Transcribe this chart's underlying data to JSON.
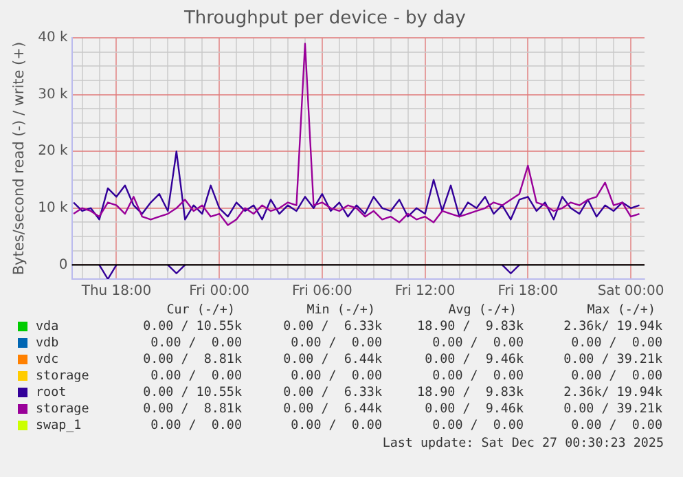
{
  "chart_data": {
    "type": "line",
    "title": "Throughput per device - by day",
    "ylabel": "Bytes/second read (-) / write (+)",
    "x": [
      "2025-12-25T15:30",
      "2025-12-25T16:00",
      "2025-12-25T16:30",
      "2025-12-25T17:00",
      "2025-12-25T17:30",
      "2025-12-25T18:00",
      "2025-12-25T18:30",
      "2025-12-25T19:00",
      "2025-12-25T19:30",
      "2025-12-25T20:00",
      "2025-12-25T20:30",
      "2025-12-25T21:00",
      "2025-12-25T21:30",
      "2025-12-25T22:00",
      "2025-12-25T22:30",
      "2025-12-25T23:00",
      "2025-12-25T23:30",
      "2025-12-26T00:00",
      "2025-12-26T00:30",
      "2025-12-26T01:00",
      "2025-12-26T01:30",
      "2025-12-26T02:00",
      "2025-12-26T02:30",
      "2025-12-26T03:00",
      "2025-12-26T03:30",
      "2025-12-26T04:00",
      "2025-12-26T04:30",
      "2025-12-26T05:00",
      "2025-12-26T05:30",
      "2025-12-26T06:00",
      "2025-12-26T06:30",
      "2025-12-26T07:00",
      "2025-12-26T07:30",
      "2025-12-26T08:00",
      "2025-12-26T08:30",
      "2025-12-26T09:00",
      "2025-12-26T09:30",
      "2025-12-26T10:00",
      "2025-12-26T10:30",
      "2025-12-26T11:00",
      "2025-12-26T11:30",
      "2025-12-26T12:00",
      "2025-12-26T12:30",
      "2025-12-26T13:00",
      "2025-12-26T13:30",
      "2025-12-26T14:00",
      "2025-12-26T14:30",
      "2025-12-26T15:00",
      "2025-12-26T15:30",
      "2025-12-26T16:00",
      "2025-12-26T16:30",
      "2025-12-26T17:00",
      "2025-12-26T17:30",
      "2025-12-26T18:00",
      "2025-12-26T18:30",
      "2025-12-26T19:00",
      "2025-12-26T19:30",
      "2025-12-26T20:00",
      "2025-12-26T20:30",
      "2025-12-26T21:00",
      "2025-12-26T21:30",
      "2025-12-26T22:00",
      "2025-12-26T22:30",
      "2025-12-26T23:00",
      "2025-12-26T23:30",
      "2025-12-27T00:00",
      "2025-12-27T00:30"
    ],
    "xlim": [
      "2025-12-25T15:24",
      "2025-12-27T00:48"
    ],
    "xticks": [
      {
        "value": "2025-12-25T16:00",
        "label": null
      },
      {
        "value": "2025-12-25T17:00",
        "label": null
      },
      {
        "value": "2025-12-25T18:00",
        "label": "Thu 18:00"
      },
      {
        "value": "2025-12-25T19:00",
        "label": null
      },
      {
        "value": "2025-12-25T20:00",
        "label": null
      },
      {
        "value": "2025-12-25T21:00",
        "label": null
      },
      {
        "value": "2025-12-25T22:00",
        "label": null
      },
      {
        "value": "2025-12-25T23:00",
        "label": null
      },
      {
        "value": "2025-12-26T00:00",
        "label": "Fri 00:00"
      },
      {
        "value": "2025-12-26T01:00",
        "label": null
      },
      {
        "value": "2025-12-26T02:00",
        "label": null
      },
      {
        "value": "2025-12-26T03:00",
        "label": null
      },
      {
        "value": "2025-12-26T04:00",
        "label": null
      },
      {
        "value": "2025-12-26T05:00",
        "label": null
      },
      {
        "value": "2025-12-26T06:00",
        "label": "Fri 06:00"
      },
      {
        "value": "2025-12-26T07:00",
        "label": null
      },
      {
        "value": "2025-12-26T08:00",
        "label": null
      },
      {
        "value": "2025-12-26T09:00",
        "label": null
      },
      {
        "value": "2025-12-26T10:00",
        "label": null
      },
      {
        "value": "2025-12-26T11:00",
        "label": null
      },
      {
        "value": "2025-12-26T12:00",
        "label": "Fri 12:00"
      },
      {
        "value": "2025-12-26T13:00",
        "label": null
      },
      {
        "value": "2025-12-26T14:00",
        "label": null
      },
      {
        "value": "2025-12-26T15:00",
        "label": null
      },
      {
        "value": "2025-12-26T16:00",
        "label": null
      },
      {
        "value": "2025-12-26T17:00",
        "label": null
      },
      {
        "value": "2025-12-26T18:00",
        "label": "Fri 18:00"
      },
      {
        "value": "2025-12-26T19:00",
        "label": null
      },
      {
        "value": "2025-12-26T20:00",
        "label": null
      },
      {
        "value": "2025-12-26T21:00",
        "label": null
      },
      {
        "value": "2025-12-26T22:00",
        "label": null
      },
      {
        "value": "2025-12-26T23:00",
        "label": null
      },
      {
        "value": "2025-12-27T00:00",
        "label": "Sat 00:00"
      }
    ],
    "ylim": [
      -2500,
      40000
    ],
    "yticks": [
      {
        "value": -2500,
        "label": null
      },
      {
        "value": 0,
        "label": "0"
      },
      {
        "value": 2500,
        "label": null
      },
      {
        "value": 5000,
        "label": null
      },
      {
        "value": 7500,
        "label": null
      },
      {
        "value": 10000,
        "label": "10 k"
      },
      {
        "value": 12500,
        "label": null
      },
      {
        "value": 15000,
        "label": null
      },
      {
        "value": 17500,
        "label": null
      },
      {
        "value": 20000,
        "label": "20 k"
      },
      {
        "value": 22500,
        "label": null
      },
      {
        "value": 25000,
        "label": null
      },
      {
        "value": 27500,
        "label": null
      },
      {
        "value": 30000,
        "label": "30 k"
      },
      {
        "value": 32500,
        "label": null
      },
      {
        "value": 35000,
        "label": null
      },
      {
        "value": 37500,
        "label": null
      },
      {
        "value": 40000,
        "label": "40 k"
      }
    ],
    "grid": true,
    "legend": "bottom",
    "marker": "none",
    "line_style": "solid",
    "ref_lines": [
      {
        "axis": "y",
        "value": 0,
        "label": null,
        "color": "#000000"
      }
    ],
    "series": [
      {
        "name": "vda",
        "color": "#00cc00",
        "values": [
          null,
          null,
          null,
          null,
          null,
          null,
          null,
          null,
          null,
          null,
          null,
          null,
          null,
          null,
          null,
          null,
          null,
          null,
          null,
          null,
          null,
          null,
          null,
          null,
          null,
          null,
          null,
          null,
          null,
          null,
          null,
          null,
          null,
          null,
          null,
          null,
          null,
          null,
          null,
          null,
          null,
          null,
          null,
          null,
          null,
          null,
          null,
          null,
          null,
          null,
          null,
          null,
          null,
          null,
          null,
          null,
          null,
          null,
          null,
          null,
          null,
          null,
          null,
          null,
          null,
          null,
          null
        ]
      },
      {
        "name": "vdb",
        "color": "#0066b3",
        "values": [
          null,
          null,
          null,
          null,
          null,
          null,
          null,
          null,
          null,
          null,
          null,
          null,
          null,
          null,
          null,
          null,
          null,
          null,
          null,
          null,
          null,
          null,
          null,
          null,
          null,
          null,
          null,
          null,
          null,
          null,
          null,
          null,
          null,
          null,
          null,
          null,
          null,
          null,
          null,
          null,
          null,
          null,
          null,
          null,
          null,
          null,
          null,
          null,
          null,
          null,
          null,
          null,
          null,
          null,
          null,
          null,
          null,
          null,
          null,
          null,
          null,
          null,
          null,
          null,
          null,
          null,
          null
        ]
      },
      {
        "name": "vdc",
        "color": "#ff8000",
        "values": [
          null,
          null,
          null,
          null,
          null,
          null,
          null,
          null,
          null,
          null,
          null,
          null,
          null,
          null,
          null,
          null,
          null,
          null,
          null,
          null,
          null,
          null,
          null,
          null,
          null,
          null,
          null,
          null,
          null,
          null,
          null,
          null,
          null,
          null,
          null,
          null,
          null,
          null,
          null,
          null,
          null,
          null,
          null,
          null,
          null,
          null,
          null,
          null,
          null,
          null,
          null,
          null,
          null,
          null,
          null,
          null,
          null,
          null,
          null,
          null,
          null,
          null,
          null,
          null,
          null,
          null,
          null
        ]
      },
      {
        "name": "storage",
        "color": "#ffcc00",
        "values": [
          null,
          null,
          null,
          null,
          null,
          null,
          null,
          null,
          null,
          null,
          null,
          null,
          null,
          null,
          null,
          null,
          null,
          null,
          null,
          null,
          null,
          null,
          null,
          null,
          null,
          null,
          null,
          null,
          null,
          null,
          null,
          null,
          null,
          null,
          null,
          null,
          null,
          null,
          null,
          null,
          null,
          null,
          null,
          null,
          null,
          null,
          null,
          null,
          null,
          null,
          null,
          null,
          null,
          null,
          null,
          null,
          null,
          null,
          null,
          null,
          null,
          null,
          null,
          null,
          null,
          null,
          null
        ]
      },
      {
        "name": "root",
        "color": "#330099",
        "values": [
          11000,
          9500,
          10000,
          8000,
          13500,
          12000,
          14000,
          10500,
          9000,
          11000,
          12500,
          9500,
          20000,
          8000,
          10500,
          9000,
          14000,
          10000,
          8500,
          11000,
          9500,
          10500,
          8000,
          11500,
          9000,
          10500,
          9500,
          12000,
          10000,
          12500,
          9500,
          11000,
          8500,
          10500,
          9000,
          12000,
          10000,
          9500,
          11500,
          8500,
          10000,
          9000,
          15000,
          9500,
          14000,
          8500,
          11000,
          10000,
          12000,
          9000,
          10500,
          8000,
          11500,
          12000,
          9500,
          11000,
          8000,
          12000,
          10000,
          9000,
          11500,
          8500,
          10500,
          9500,
          11000,
          10000,
          10500
        ]
      },
      {
        "name": "storage",
        "color": "#990099",
        "values": [
          9000,
          10000,
          9500,
          8500,
          11000,
          10500,
          9000,
          12000,
          8500,
          8000,
          8500,
          9000,
          10000,
          11500,
          9500,
          10500,
          8500,
          9000,
          7000,
          8000,
          10000,
          9000,
          10500,
          9500,
          10000,
          11000,
          10500,
          39000,
          10500,
          11000,
          10000,
          9500,
          10500,
          10000,
          8500,
          9500,
          8000,
          8500,
          7500,
          9000,
          8000,
          8500,
          7500,
          9500,
          9000,
          8500,
          9000,
          9500,
          10000,
          11000,
          10500,
          11500,
          12500,
          17500,
          11000,
          10500,
          9500,
          10000,
          11000,
          10500,
          11500,
          12000,
          14500,
          10500,
          11000,
          8500,
          9000
        ]
      },
      {
        "name": "swap_1",
        "color": "#ccff00",
        "values": [
          null,
          null,
          null,
          null,
          null,
          null,
          null,
          null,
          null,
          null,
          null,
          null,
          null,
          null,
          null,
          null,
          null,
          null,
          null,
          null,
          null,
          null,
          null,
          null,
          null,
          null,
          null,
          null,
          null,
          null,
          null,
          null,
          null,
          null,
          null,
          null,
          null,
          null,
          null,
          null,
          null,
          null,
          null,
          null,
          null,
          null,
          null,
          null,
          null,
          null,
          null,
          null,
          null,
          null,
          null,
          null,
          null,
          null,
          null,
          null,
          null,
          null,
          null,
          null,
          null,
          null,
          null
        ]
      },
      {
        "color": "#330099",
        "values": [
          null,
          null,
          null,
          0,
          -2500,
          0,
          null,
          null,
          null,
          null,
          null,
          0,
          -1500,
          0,
          null,
          null,
          null,
          null,
          null,
          null,
          null,
          null,
          null,
          null,
          null,
          null,
          null,
          null,
          null,
          null,
          null,
          null,
          null,
          null,
          null,
          null,
          null,
          null,
          null,
          null,
          null,
          null,
          null,
          null,
          null,
          null,
          null,
          null,
          null,
          null,
          0,
          -1500,
          0,
          null,
          null,
          null,
          null,
          null,
          null,
          null,
          null,
          null,
          null,
          null,
          null,
          null,
          null
        ]
      }
    ],
    "annotations": [
      "Cur (-/+)",
      "Min (-/+)",
      "Avg (-/+)",
      "Max (-/+)",
      "0.00 / 10.55k",
      "0.00 /  6.33k",
      "18.90 /  9.83k",
      "2.36k/ 19.94k",
      "0.00 /  0.00",
      "0.00 /  0.00",
      "0.00 /  0.00",
      "0.00 /  0.00",
      "0.00 /  8.81k",
      "0.00 /  6.44k",
      "0.00 /  9.46k",
      "0.00 / 39.21k",
      "0.00 /  0.00",
      "0.00 /  0.00",
      "0.00 /  0.00",
      "0.00 /  0.00",
      "0.00 / 10.55k",
      "0.00 /  6.33k",
      "18.90 /  9.83k",
      "2.36k/ 19.94k",
      "0.00 /  8.81k",
      "0.00 /  6.44k",
      "0.00 /  9.46k",
      "0.00 / 39.21k",
      "0.00 /  0.00",
      "0.00 /  0.00",
      "0.00 /  0.00",
      "0.00 /  0.00",
      "Last update: Sat Dec 27 00:30:23 2025"
    ]
  }
}
